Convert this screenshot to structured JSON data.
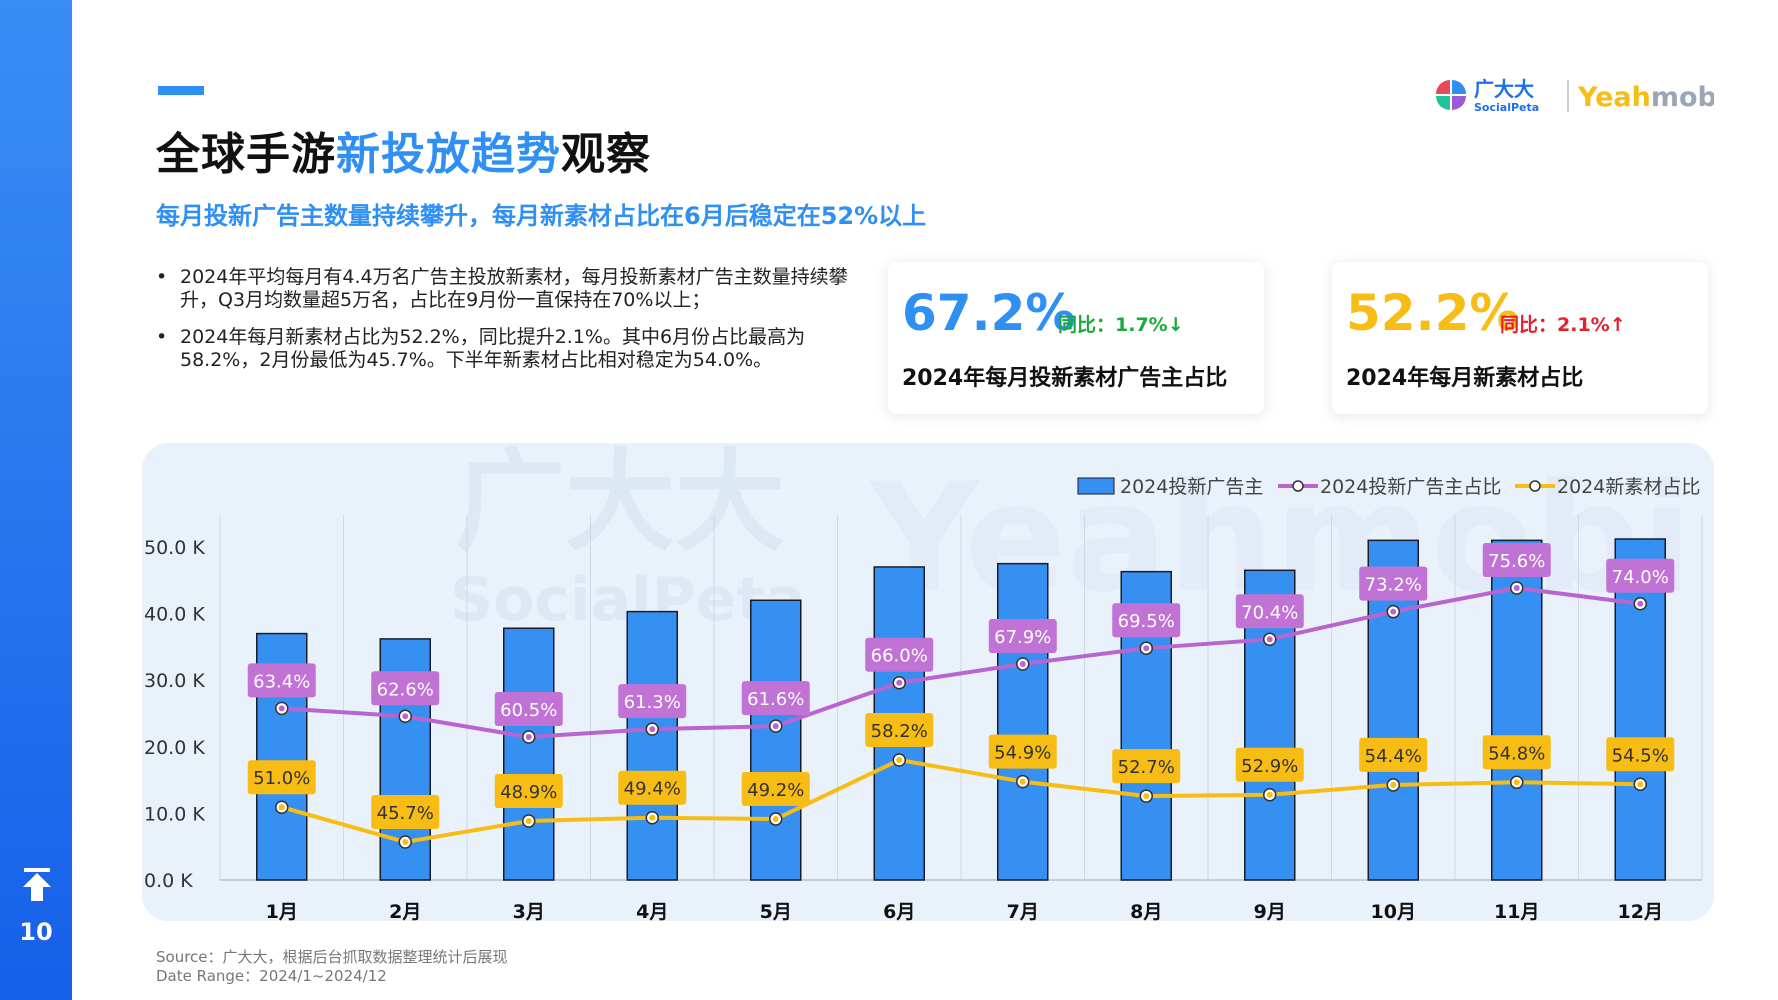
{
  "page": {
    "number": "10",
    "title_part1": "全球手游",
    "title_part2": "新投放趋势",
    "title_part3": "观察",
    "subtitle": "每月投新广告主数量持续攀升，每月新素材占比在6月后稳定在52%以上",
    "bullets": [
      "2024年平均每月有4.4万名广告主投放新素材，每月投新素材广告主数量持续攀升，Q3月均数量超5万名，占比在9月份一直保持在70%以上；",
      "2024年每月新素材占比为52.2%，同比提升2.1%。其中6月份占比最高为58.2%，2月份最低为45.7%。下半年新素材占比相对稳定为54.0%。"
    ],
    "source_line1": "Source：广大大，根据后台抓取数据整理统计后展现",
    "source_line2": "Date Range：2024/1~2024/12"
  },
  "logos": {
    "brand_cn": "广大大",
    "brand_en": "SocialPeta",
    "partner_part1": "Yeah",
    "partner_part2": "mobi"
  },
  "cards": [
    {
      "value": "67.2%",
      "yoy": "同比：1.7%↓",
      "label": "2024年每月投新素材广告主占比",
      "value_color": "#2f8ff3",
      "yoy_color": "#1aaa3c"
    },
    {
      "value": "52.2%",
      "yoy": "同比：2.1%↑",
      "label": "2024年每月新素材占比",
      "value_color": "#f7bd14",
      "yoy_color": "#e5202d"
    }
  ],
  "chart_data": {
    "type": "bar",
    "categories": [
      "1月",
      "2月",
      "3月",
      "4月",
      "5月",
      "6月",
      "7月",
      "8月",
      "9月",
      "10月",
      "11月",
      "12月"
    ],
    "series": [
      {
        "name": "2024投新广告主",
        "kind": "bar",
        "axis": "left",
        "values": [
          37,
          36.2,
          37.8,
          40.3,
          42,
          47,
          47.5,
          46.3,
          46.5,
          51,
          51,
          51.2
        ],
        "color": "#3590f2"
      },
      {
        "name": "2024投新广告主占比",
        "kind": "line",
        "axis": "right",
        "values": [
          63.4,
          62.6,
          60.5,
          61.3,
          61.6,
          66.0,
          67.9,
          69.5,
          70.4,
          73.2,
          75.6,
          74.0
        ],
        "labels": [
          "63.4%",
          "62.6%",
          "60.5%",
          "61.3%",
          "61.6%",
          "66.0%",
          "67.9%",
          "69.5%",
          "70.4%",
          "73.2%",
          "75.6%",
          "74.0%"
        ],
        "color": "#b865d0",
        "label_bg": "#c073d4"
      },
      {
        "name": "2024新素材占比",
        "kind": "line",
        "axis": "right",
        "values": [
          51.0,
          45.7,
          48.9,
          49.4,
          49.2,
          58.2,
          54.9,
          52.7,
          52.9,
          54.4,
          54.8,
          54.5
        ],
        "labels": [
          "51.0%",
          "45.7%",
          "48.9%",
          "49.4%",
          "49.2%",
          "58.2%",
          "54.9%",
          "52.7%",
          "52.9%",
          "54.4%",
          "54.8%",
          "54.5%"
        ],
        "color": "#f7bd14",
        "label_bg": "#f7bd14"
      }
    ],
    "y_ticks": [
      "0.0 K",
      "10.0 K",
      "20.0 K",
      "30.0 K",
      "40.0 K",
      "50.0 K"
    ],
    "ylim": [
      0,
      50
    ],
    "legend": "top-right",
    "watermark_cn": "广大大",
    "watermark_en": "SocialPeta",
    "watermark_partner": "Yeahmobi"
  }
}
